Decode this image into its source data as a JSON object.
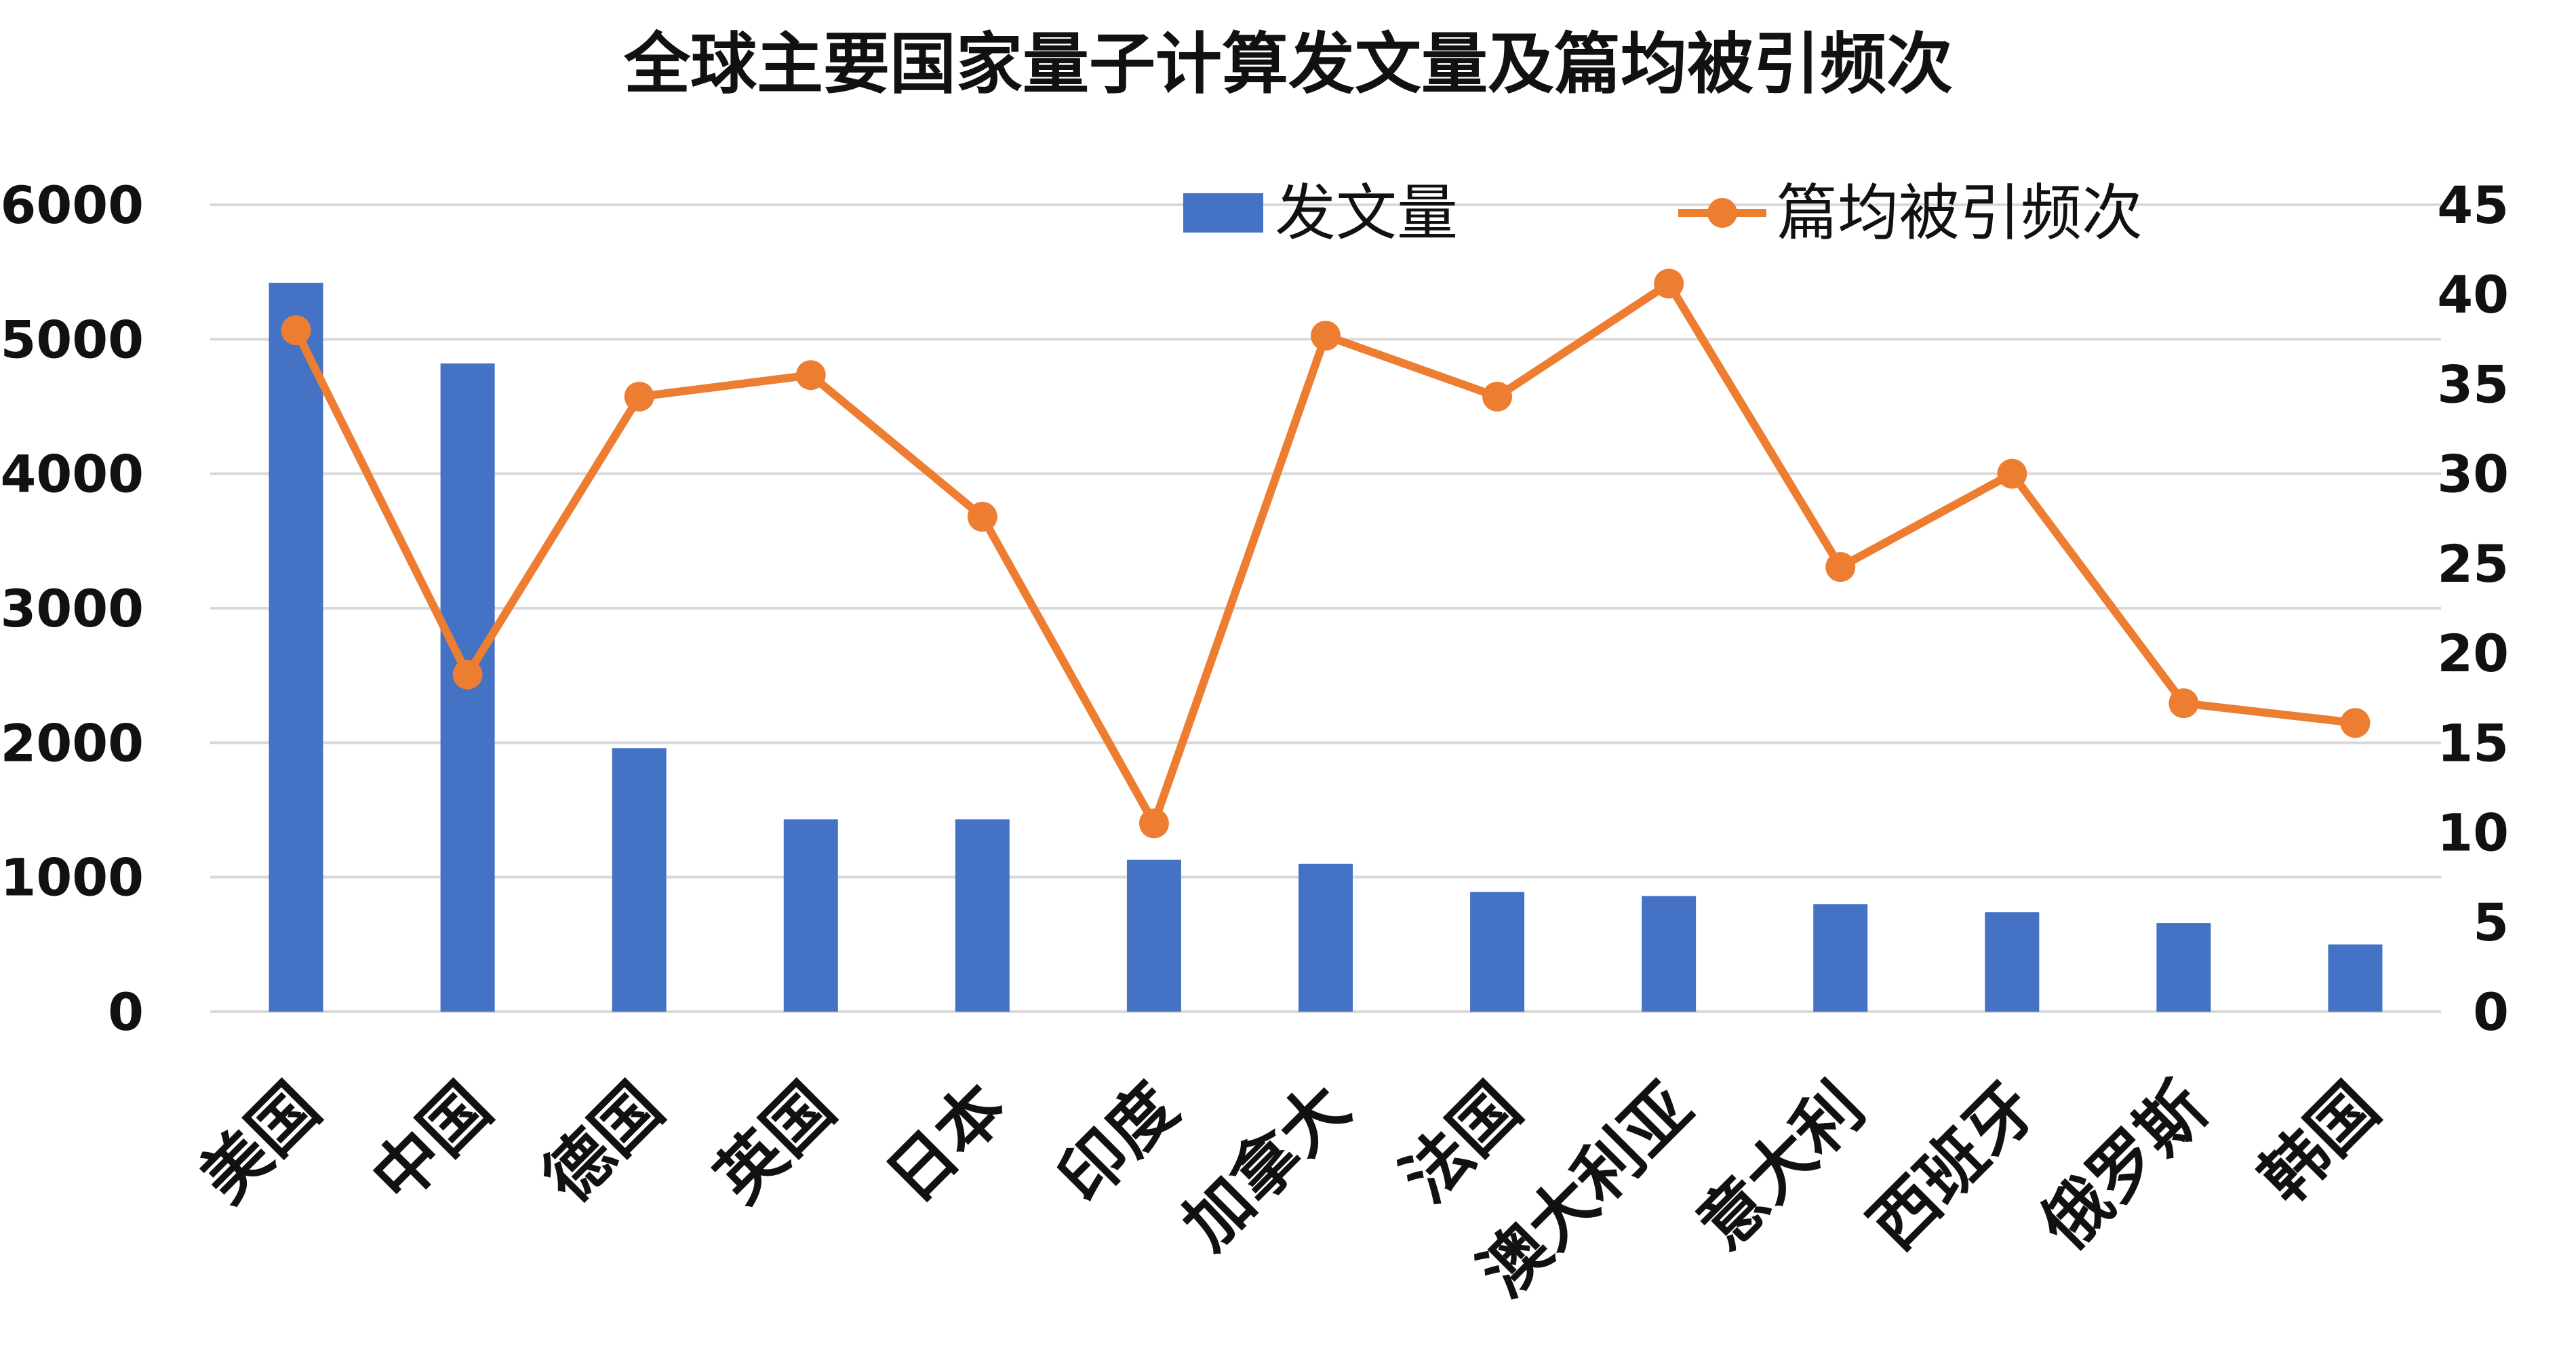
{
  "chart_data": {
    "type": "bar+line",
    "title": "全球主要国家量子计算发文量及篇均被引频次",
    "categories": [
      "美国",
      "中国",
      "德国",
      "英国",
      "日本",
      "印度",
      "加拿大",
      "法国",
      "澳大利亚",
      "意大利",
      "西班牙",
      "俄罗斯",
      "韩国"
    ],
    "series": [
      {
        "name": "发文量",
        "type": "bar",
        "axis": "left",
        "color": "#4472c4",
        "values": [
          5420,
          4820,
          1960,
          1430,
          1430,
          1130,
          1100,
          890,
          860,
          800,
          740,
          660,
          500
        ]
      },
      {
        "name": "篇均被引频次",
        "type": "line",
        "axis": "right",
        "color": "#ed7d31",
        "values": [
          38.0,
          18.8,
          34.3,
          35.5,
          27.6,
          10.5,
          37.7,
          34.3,
          40.6,
          24.8,
          30.0,
          17.2,
          16.1
        ]
      }
    ],
    "y_left": {
      "min": 0,
      "max": 6000,
      "ticks": [
        "0",
        "1000",
        "2000",
        "3000",
        "4000",
        "5000",
        "6000"
      ]
    },
    "y_right": {
      "min": 0,
      "max": 45,
      "ticks": [
        "0",
        "5",
        "10",
        "15",
        "20",
        "25",
        "30",
        "35",
        "40",
        "45"
      ]
    },
    "grid": true,
    "legend": {
      "position": "top",
      "items": [
        {
          "label": "发文量",
          "marker": "bar",
          "color": "#4472c4"
        },
        {
          "label": "篇均被引频次",
          "marker": "line",
          "color": "#ed7d31"
        }
      ]
    }
  }
}
